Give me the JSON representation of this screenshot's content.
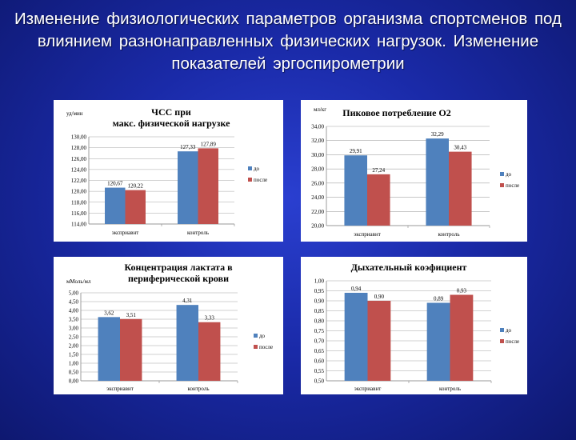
{
  "slide": {
    "title": "Изменение физиологических параметров организма спортсменов под влиянием разнонаправленных физических нагрузок. Изменение показателей эргоспирометрии"
  },
  "colors": {
    "do": "#4f81bd",
    "posle": "#c0504d",
    "grid": "#a6a6a6",
    "background": "#1a2aa8"
  },
  "chart_data": [
    {
      "type": "bar",
      "title": "ЧСС при макс. физической нагрузке",
      "ylabel": "уд/мин",
      "categories": [
        "эксприавнт",
        "контроль"
      ],
      "series": [
        {
          "name": "до",
          "values": [
            120.67,
            127.33
          ],
          "labels": [
            "120,67",
            "127,33"
          ]
        },
        {
          "name": "после",
          "values": [
            120.22,
            127.89
          ],
          "labels": [
            "120,22",
            "127,89"
          ]
        }
      ],
      "ylim": [
        114,
        130
      ],
      "yticks": [
        114,
        116,
        118,
        120,
        122,
        124,
        126,
        128,
        130
      ],
      "ytick_labels": [
        "114,00",
        "116,00",
        "118,00",
        "120,00",
        "122,00",
        "124,00",
        "126,00",
        "128,00",
        "130,00"
      ],
      "grid": true,
      "legend": "right"
    },
    {
      "type": "bar",
      "title": "Пиковое потребление О2",
      "ylabel": "мл/кг",
      "categories": [
        "эксприавнт",
        "контроль"
      ],
      "series": [
        {
          "name": "до",
          "values": [
            29.91,
            32.29
          ],
          "labels": [
            "29,91",
            "32,29"
          ]
        },
        {
          "name": "после",
          "values": [
            27.24,
            30.43
          ],
          "labels": [
            "27,24",
            "30,43"
          ]
        }
      ],
      "ylim": [
        20,
        34
      ],
      "yticks": [
        20,
        22,
        24,
        26,
        28,
        30,
        32,
        34
      ],
      "ytick_labels": [
        "20,00",
        "22,00",
        "24,00",
        "26,00",
        "28,00",
        "30,00",
        "32,00",
        "34,00"
      ],
      "grid": true,
      "legend": "right"
    },
    {
      "type": "bar",
      "title": "Концентрация лактата в периферической крови",
      "ylabel": "мМоль/мл",
      "categories": [
        "эксприавнт",
        "контроль"
      ],
      "series": [
        {
          "name": "до",
          "values": [
            3.62,
            4.31
          ],
          "labels": [
            "3,62",
            "4,31"
          ]
        },
        {
          "name": "после",
          "values": [
            3.51,
            3.33
          ],
          "labels": [
            "3,51",
            "3,33"
          ]
        }
      ],
      "ylim": [
        0,
        5
      ],
      "yticks": [
        0,
        0.5,
        1,
        1.5,
        2,
        2.5,
        3,
        3.5,
        4,
        4.5,
        5
      ],
      "ytick_labels": [
        "0,00",
        "0,50",
        "1,00",
        "1,50",
        "2,00",
        "2,50",
        "3,00",
        "3,50",
        "4,00",
        "4,50",
        "5,00"
      ],
      "grid": true,
      "legend": "right"
    },
    {
      "type": "bar",
      "title": "Дыхательный коэфициент",
      "ylabel": "",
      "categories": [
        "эксприавнт",
        "контроль"
      ],
      "series": [
        {
          "name": "до",
          "values": [
            0.94,
            0.89
          ],
          "labels": [
            "0,94",
            "0,89"
          ]
        },
        {
          "name": "после",
          "values": [
            0.9,
            0.93
          ],
          "labels": [
            "0,90",
            "0,93"
          ]
        }
      ],
      "ylim": [
        0.5,
        1.0
      ],
      "yticks": [
        0.5,
        0.55,
        0.6,
        0.65,
        0.7,
        0.75,
        0.8,
        0.85,
        0.9,
        0.95,
        1.0
      ],
      "ytick_labels": [
        "0,50",
        "0,55",
        "0,60",
        "0,65",
        "0,70",
        "0,75",
        "0,80",
        "0,85",
        "0,90",
        "0,95",
        "1,00"
      ],
      "grid": true,
      "legend": "right"
    }
  ]
}
